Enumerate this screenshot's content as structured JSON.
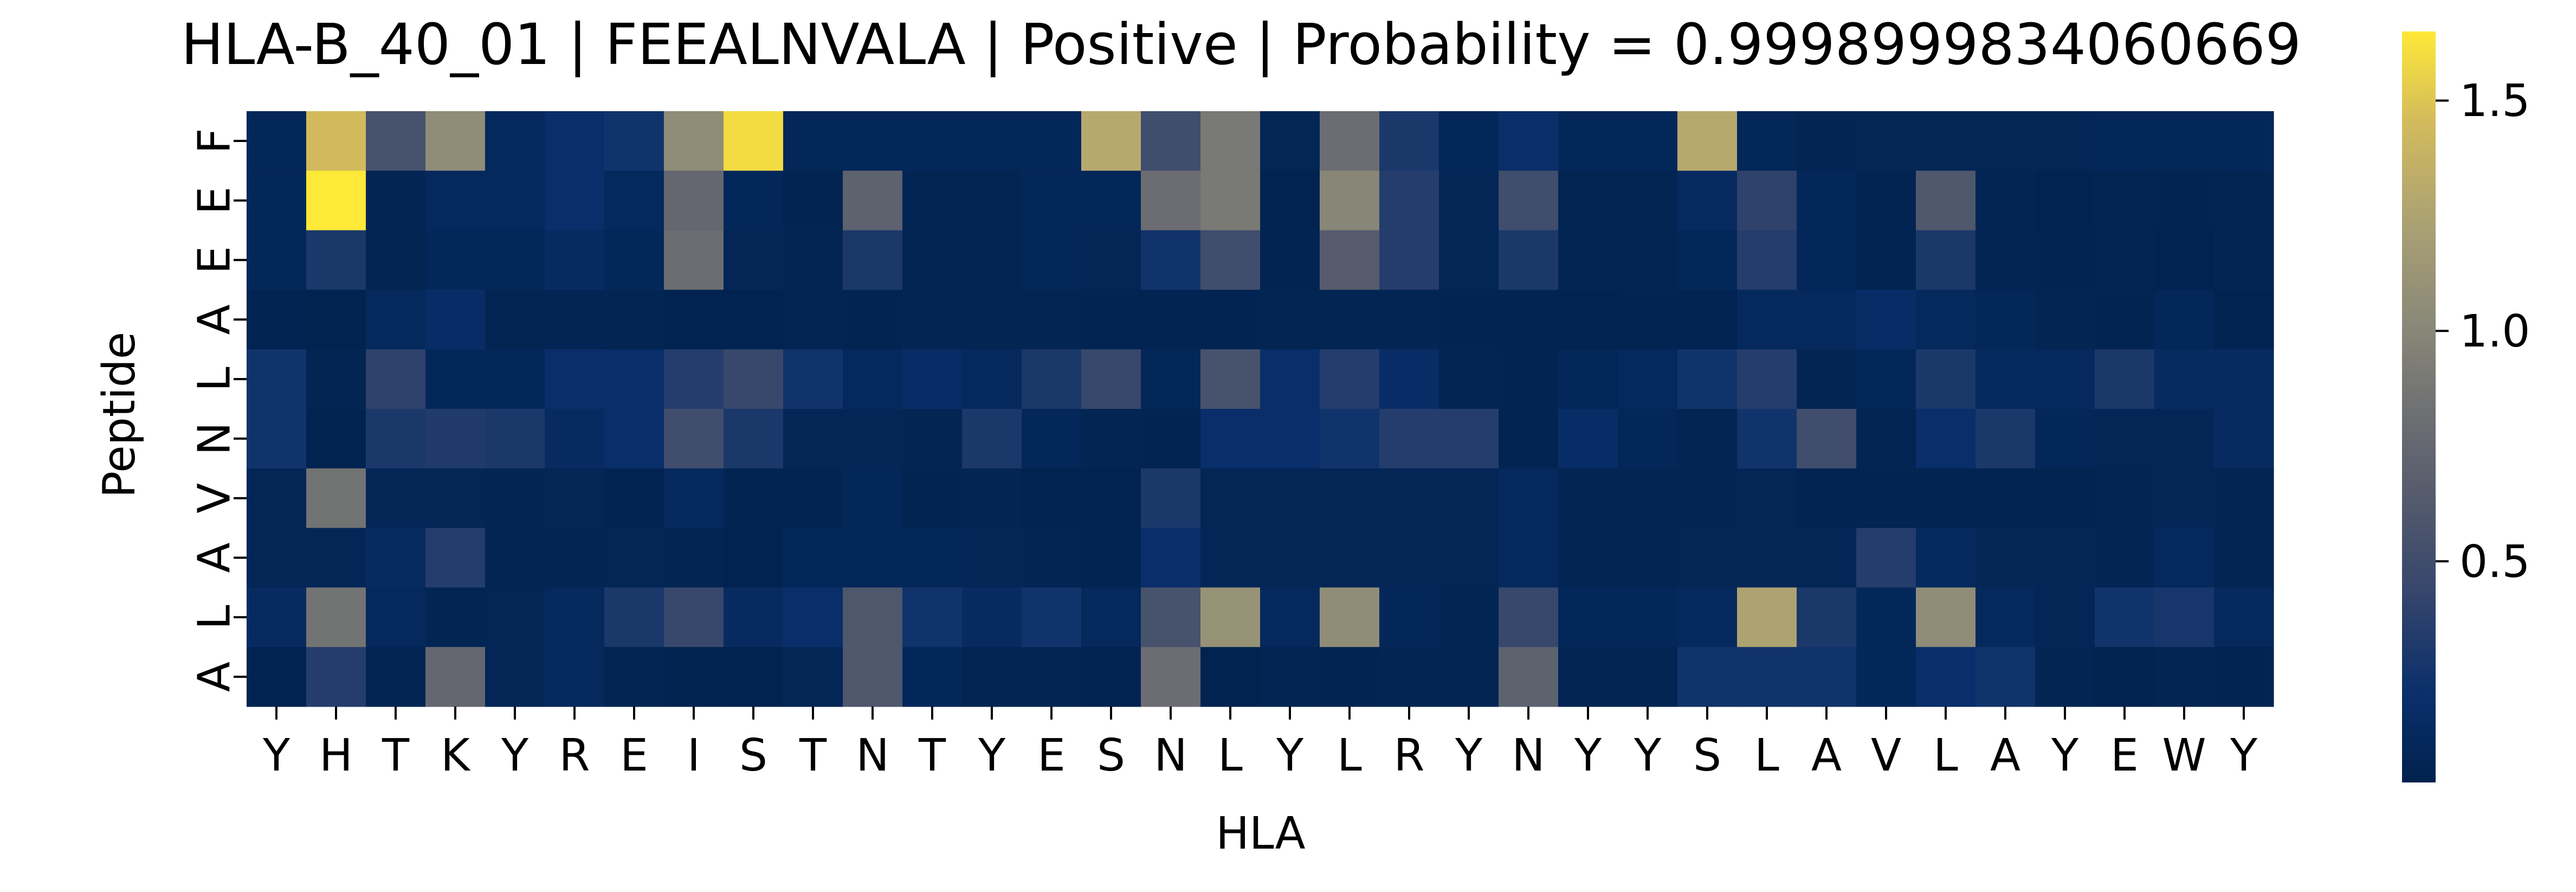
{
  "chart_data": {
    "type": "heatmap",
    "title": "HLA-B_40_01 | FEEALNVALA | Positive | Probability = 0.9998999834060669",
    "xlabel": "HLA",
    "ylabel": "Peptide",
    "x_categories": [
      "Y",
      "H",
      "T",
      "K",
      "Y",
      "R",
      "E",
      "I",
      "S",
      "T",
      "N",
      "T",
      "Y",
      "E",
      "S",
      "N",
      "L",
      "Y",
      "L",
      "R",
      "Y",
      "N",
      "Y",
      "Y",
      "S",
      "L",
      "A",
      "V",
      "L",
      "A",
      "Y",
      "E",
      "W",
      "Y"
    ],
    "y_categories": [
      "F",
      "E",
      "E",
      "A",
      "L",
      "N",
      "V",
      "A",
      "L",
      "A"
    ],
    "colormap": "cividis",
    "colorbar": {
      "min": 0.02,
      "max": 1.65,
      "ticks": [
        0.5,
        1.0,
        1.5
      ],
      "tick_labels": [
        "0.5",
        "1.0",
        "1.5"
      ]
    },
    "values": [
      [
        0.1,
        1.45,
        0.55,
        1.05,
        0.12,
        0.2,
        0.25,
        1.05,
        1.6,
        0.1,
        0.1,
        0.1,
        0.1,
        0.1,
        1.3,
        0.5,
        0.9,
        0.08,
        0.8,
        0.3,
        0.1,
        0.2,
        0.1,
        0.1,
        1.3,
        0.1,
        0.06,
        0.08,
        0.08,
        0.08,
        0.08,
        0.1,
        0.1,
        0.1
      ],
      [
        0.1,
        1.65,
        0.07,
        0.12,
        0.12,
        0.2,
        0.12,
        0.75,
        0.1,
        0.05,
        0.7,
        0.06,
        0.06,
        0.1,
        0.1,
        0.8,
        0.9,
        0.04,
        1.0,
        0.35,
        0.08,
        0.5,
        0.06,
        0.06,
        0.15,
        0.4,
        0.1,
        0.05,
        0.6,
        0.06,
        0.04,
        0.06,
        0.05,
        0.06
      ],
      [
        0.1,
        0.3,
        0.06,
        0.1,
        0.1,
        0.15,
        0.1,
        0.8,
        0.08,
        0.06,
        0.3,
        0.06,
        0.06,
        0.1,
        0.08,
        0.25,
        0.5,
        0.05,
        0.65,
        0.35,
        0.08,
        0.3,
        0.06,
        0.06,
        0.1,
        0.35,
        0.1,
        0.04,
        0.3,
        0.06,
        0.05,
        0.06,
        0.04,
        0.06
      ],
      [
        0.05,
        0.03,
        0.12,
        0.18,
        0.06,
        0.07,
        0.06,
        0.04,
        0.04,
        0.06,
        0.05,
        0.06,
        0.06,
        0.06,
        0.05,
        0.05,
        0.05,
        0.06,
        0.06,
        0.06,
        0.05,
        0.05,
        0.04,
        0.05,
        0.05,
        0.12,
        0.12,
        0.18,
        0.12,
        0.1,
        0.06,
        0.05,
        0.1,
        0.04
      ],
      [
        0.25,
        0.06,
        0.4,
        0.1,
        0.1,
        0.2,
        0.2,
        0.35,
        0.45,
        0.25,
        0.12,
        0.18,
        0.12,
        0.3,
        0.45,
        0.1,
        0.55,
        0.2,
        0.35,
        0.18,
        0.06,
        0.05,
        0.1,
        0.12,
        0.25,
        0.35,
        0.06,
        0.1,
        0.3,
        0.12,
        0.12,
        0.3,
        0.15,
        0.15
      ],
      [
        0.25,
        0.03,
        0.3,
        0.32,
        0.3,
        0.15,
        0.2,
        0.5,
        0.3,
        0.08,
        0.08,
        0.06,
        0.3,
        0.1,
        0.06,
        0.05,
        0.2,
        0.2,
        0.25,
        0.35,
        0.35,
        0.05,
        0.18,
        0.1,
        0.06,
        0.25,
        0.5,
        0.06,
        0.2,
        0.3,
        0.1,
        0.08,
        0.08,
        0.15
      ],
      [
        0.08,
        0.85,
        0.08,
        0.08,
        0.06,
        0.08,
        0.04,
        0.12,
        0.05,
        0.05,
        0.1,
        0.05,
        0.06,
        0.04,
        0.04,
        0.3,
        0.08,
        0.08,
        0.08,
        0.08,
        0.08,
        0.12,
        0.06,
        0.06,
        0.06,
        0.08,
        0.04,
        0.05,
        0.05,
        0.05,
        0.05,
        0.06,
        0.08,
        0.06
      ],
      [
        0.08,
        0.08,
        0.15,
        0.35,
        0.06,
        0.06,
        0.08,
        0.06,
        0.04,
        0.1,
        0.1,
        0.1,
        0.08,
        0.06,
        0.05,
        0.2,
        0.08,
        0.08,
        0.08,
        0.08,
        0.08,
        0.12,
        0.06,
        0.06,
        0.08,
        0.08,
        0.08,
        0.35,
        0.12,
        0.08,
        0.08,
        0.06,
        0.12,
        0.06
      ],
      [
        0.15,
        0.85,
        0.12,
        0.06,
        0.08,
        0.12,
        0.3,
        0.45,
        0.15,
        0.2,
        0.6,
        0.25,
        0.15,
        0.25,
        0.12,
        0.55,
        1.1,
        0.12,
        1.05,
        0.1,
        0.06,
        0.45,
        0.1,
        0.1,
        0.12,
        1.25,
        0.3,
        0.1,
        1.05,
        0.12,
        0.08,
        0.25,
        0.28,
        0.12
      ],
      [
        0.04,
        0.35,
        0.06,
        0.75,
        0.08,
        0.12,
        0.06,
        0.03,
        0.03,
        0.08,
        0.6,
        0.1,
        0.06,
        0.06,
        0.04,
        0.8,
        0.03,
        0.06,
        0.05,
        0.06,
        0.06,
        0.7,
        0.06,
        0.06,
        0.25,
        0.25,
        0.25,
        0.1,
        0.2,
        0.25,
        0.06,
        0.03,
        0.06,
        0.05
      ]
    ]
  }
}
